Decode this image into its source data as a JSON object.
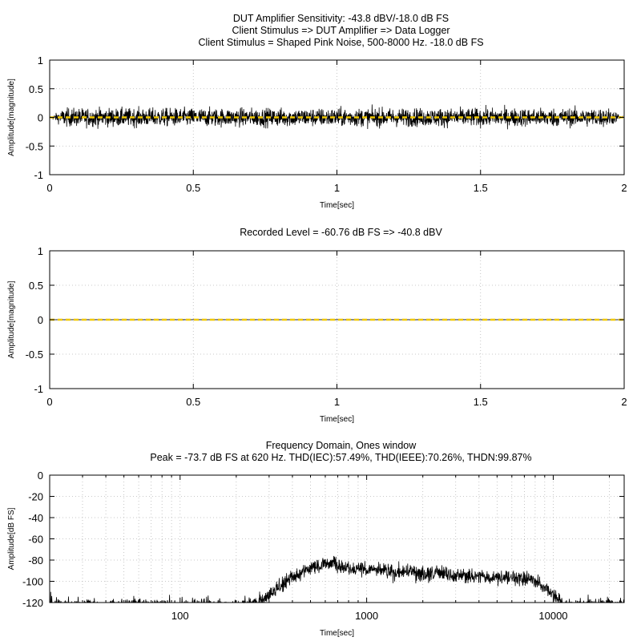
{
  "chart_data": [
    {
      "type": "line",
      "title_lines": [
        "DUT Amplifier Sensitivity: -43.8 dBV/-18.0 dB FS",
        "Client Stimulus => DUT Amplifier => Data Logger",
        "Client Stimulus = Shaped Pink Noise, 500-8000 Hz. -18.0 dB FS"
      ],
      "xlabel": "Time[sec]",
      "ylabel": "Amplitude[magnitude]",
      "xlim": [
        0,
        2
      ],
      "ylim": [
        -1,
        1
      ],
      "x_ticks": [
        "0",
        "0.5",
        "1",
        "1.5",
        "2"
      ],
      "y_ticks": [
        "1",
        "0.5",
        "0",
        "-0.5",
        "-1"
      ],
      "grid": true,
      "series": [
        {
          "kind": "noise",
          "color": "#000000",
          "peak_amplitude": 0.4,
          "typical_amplitude": 0.17
        },
        {
          "kind": "mean",
          "color": "#f0c800",
          "value": 0
        }
      ]
    },
    {
      "type": "line",
      "title_lines": [
        "Recorded Level = -60.76 dB FS  => -40.8 dBV"
      ],
      "xlabel": "Time[sec]",
      "ylabel": "Amplitude[magnitude]",
      "xlim": [
        0,
        2
      ],
      "ylim": [
        -1,
        1
      ],
      "x_ticks": [
        "0",
        "0.5",
        "1",
        "1.5",
        "2"
      ],
      "y_ticks": [
        "1",
        "0.5",
        "0",
        "-0.5",
        "-1"
      ],
      "grid": true,
      "series": [
        {
          "kind": "noise",
          "color": "#000000",
          "peak_amplitude": 0.003,
          "typical_amplitude": 0.0015
        },
        {
          "kind": "mean",
          "color": "#f0c800",
          "value": 0
        }
      ]
    },
    {
      "type": "line",
      "title_lines": [
        "Frequency Domain, Ones window",
        "Peak = -73.7 dB FS at 620 Hz. THD(IEC):57.49%, THD(IEEE):70.26%, THDN:99.87%"
      ],
      "xlabel": "Time[sec]",
      "ylabel": "Amplitude[dB FS]",
      "x_scale": "log",
      "xlim": [
        20,
        24000
      ],
      "ylim": [
        -120,
        0
      ],
      "x_ticks": [
        "100",
        "1000",
        "10000"
      ],
      "y_ticks": [
        "0",
        "-20",
        "-40",
        "-60",
        "-80",
        "-100",
        "-120"
      ],
      "grid": true,
      "spectrum_envelope": {
        "x": [
          20,
          200,
          260,
          300,
          400,
          500,
          620,
          800,
          1000,
          2000,
          3000,
          5000,
          7000,
          8000,
          9000,
          10000,
          11500
        ],
        "y": [
          -121,
          -121,
          -118,
          -110,
          -93,
          -85,
          -80,
          -84,
          -87,
          -90,
          -92,
          -94,
          -95,
          -96,
          -102,
          -110,
          -120
        ]
      }
    }
  ]
}
